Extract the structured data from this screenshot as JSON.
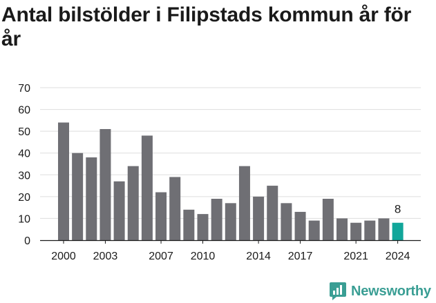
{
  "title": "Antal bilstölder i Filipstads kommun år för år",
  "brand": {
    "name": "Newsworthy",
    "icon": "newsworthy-logo-icon",
    "color": "#3a9e94"
  },
  "chart_data": {
    "type": "bar",
    "title": "Antal bilstölder i Filipstads kommun år för år",
    "xlabel": "",
    "ylabel": "",
    "categories": [
      "2000",
      "2001",
      "2002",
      "2003",
      "2004",
      "2005",
      "2006",
      "2007",
      "2008",
      "2009",
      "2010",
      "2011",
      "2012",
      "2013",
      "2014",
      "2015",
      "2016",
      "2017",
      "2018",
      "2019",
      "2020",
      "2021",
      "2022",
      "2023",
      "2024"
    ],
    "values": [
      54,
      40,
      38,
      51,
      27,
      34,
      48,
      22,
      29,
      14,
      12,
      19,
      17,
      34,
      20,
      25,
      17,
      13,
      9,
      19,
      10,
      8,
      9,
      10,
      8
    ],
    "x_tick_labels": [
      "2000",
      "2003",
      "2007",
      "2010",
      "2014",
      "2017",
      "2021",
      "2024"
    ],
    "y_ticks": [
      0,
      10,
      20,
      30,
      40,
      50,
      60,
      70
    ],
    "ylim": [
      0,
      70
    ],
    "grid": true,
    "legend": "none",
    "colors": {
      "bar": "#6f6f74",
      "highlight": "#11a69a",
      "grid": "#dddddd",
      "axis": "#1a1a1a"
    },
    "highlight_category": "2024",
    "data_labels": [
      {
        "category": "2024",
        "text": "8"
      }
    ]
  }
}
